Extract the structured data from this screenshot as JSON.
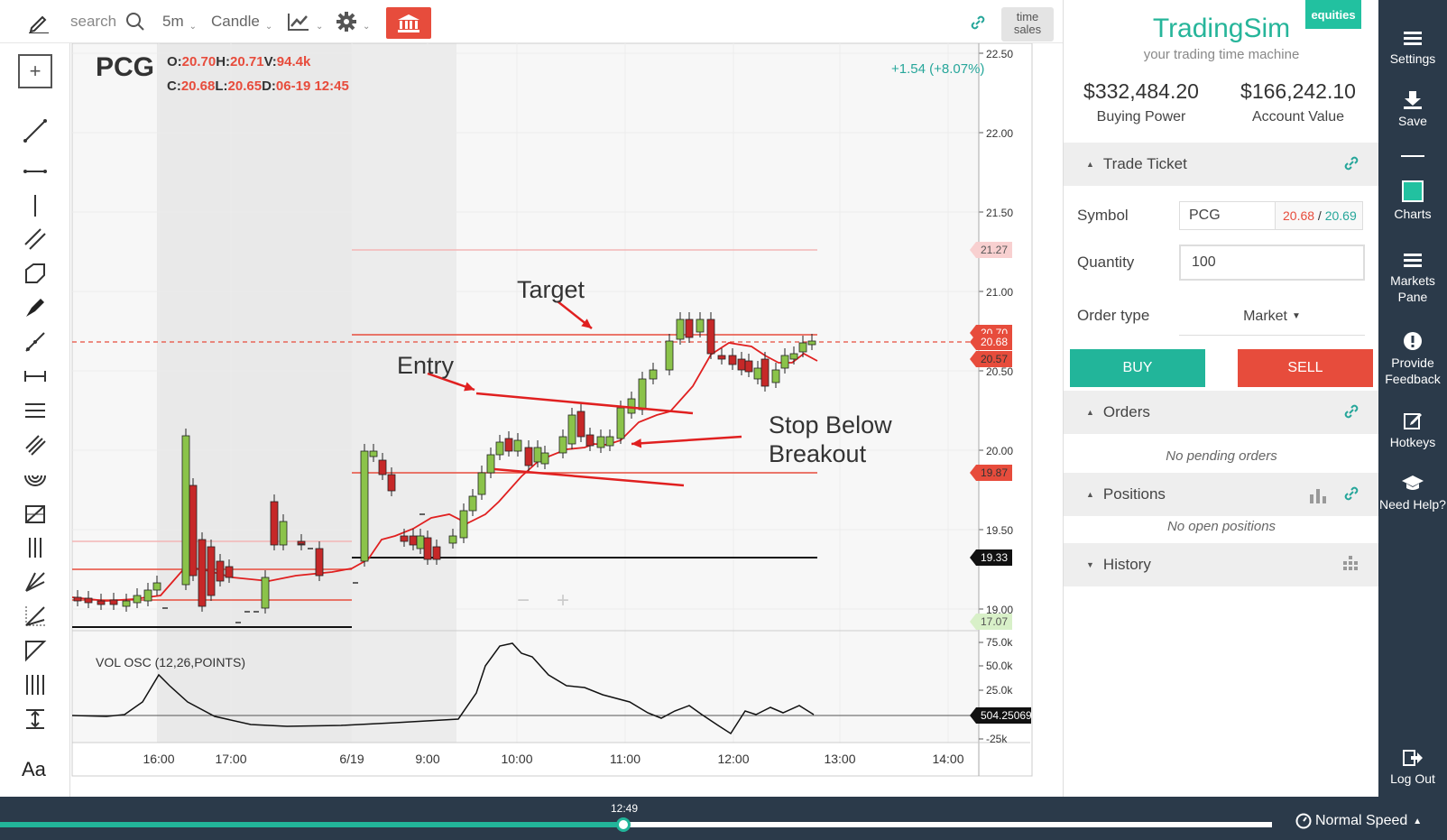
{
  "toolbar": {
    "search_placeholder": "search",
    "interval": "5m",
    "chart_type": "Candle",
    "time_sales_line1": "time",
    "time_sales_line2": "sales"
  },
  "chart_header": {
    "symbol": "PCG",
    "o_label": "O:",
    "open": "20.70",
    "h_label": "H:",
    "high": "20.71",
    "v_label": "V:",
    "volume": "94.4k",
    "c_label": "C:",
    "close": "20.68",
    "l_label": "L:",
    "low": "20.65",
    "d_label": "D:",
    "date": "06-19 12:45",
    "change": "+1.54 (+8.07%)"
  },
  "annotations": {
    "target": "Target",
    "entry": "Entry",
    "stop_line1": "Stop Below",
    "stop_line2": "Breakout"
  },
  "indicator_label": "VOL OSC (12,26,POINTS)",
  "chart_data": {
    "type": "candlestick",
    "symbol": "PCG",
    "interval": "5m",
    "ylim": [
      19.0,
      22.5
    ],
    "price_ticks": [
      "22.50",
      "22.00",
      "21.50",
      "21.00",
      "20.50",
      "20.00",
      "19.50",
      "19.00"
    ],
    "time_ticks": [
      "16:00",
      "17:00",
      "6/19",
      "9:00",
      "10:00",
      "11:00",
      "12:00",
      "13:00",
      "14:00"
    ],
    "price_badges": [
      {
        "value": "21.27",
        "color": "#f8d0d0",
        "text_color": "#555"
      },
      {
        "value": "20.70",
        "color": "#e74c3c",
        "text_color": "#fff"
      },
      {
        "value": "20.68",
        "color": "#e74c3c",
        "text_color": "#fff"
      },
      {
        "value": "20.57",
        "color": "#e74c3c",
        "text_color": "#333"
      },
      {
        "value": "19.87",
        "color": "#e74c3c",
        "text_color": "#333"
      },
      {
        "value": "19.33",
        "color": "#111111",
        "text_color": "#fff"
      },
      {
        "value": "17.07",
        "color": "#d8f0c8",
        "text_color": "#555"
      }
    ],
    "vol_osc_ticks": [
      "75.0k",
      "50.0k",
      "25.0k",
      "-25k"
    ],
    "vol_osc_value": "504.25069",
    "horizontal_levels": [
      21.27,
      20.73,
      20.68,
      19.87,
      19.33
    ]
  },
  "panel": {
    "brand": "TradingSim",
    "tagline": "your trading time machine",
    "badge": "equities",
    "buying_power": "$332,484.20",
    "buying_power_label": "Buying Power",
    "account_value": "$166,242.10",
    "account_value_label": "Account Value",
    "trade_ticket": "Trade Ticket",
    "symbol_label": "Symbol",
    "symbol_value": "PCG",
    "bid": "20.68",
    "ask": "20.69",
    "quantity_label": "Quantity",
    "quantity_value": "100",
    "order_type_label": "Order type",
    "order_type_value": "Market",
    "buy": "BUY",
    "sell": "SELL",
    "orders": "Orders",
    "no_orders": "No pending orders",
    "positions": "Positions",
    "no_positions": "No open positions",
    "history": "History"
  },
  "nav": {
    "settings": "Settings",
    "save": "Save",
    "charts": "Charts",
    "markets_pane": "Markets Pane",
    "feedback": "Provide Feedback",
    "hotkeys": "Hotkeys",
    "help": "Need Help?",
    "logout": "Log Out"
  },
  "playback": {
    "time": "12:49",
    "progress": 0.49,
    "speed": "Normal Speed"
  },
  "colors": {
    "accent": "#22b59a",
    "danger": "#e74c3c",
    "nav_bg": "#2b3a4a"
  }
}
